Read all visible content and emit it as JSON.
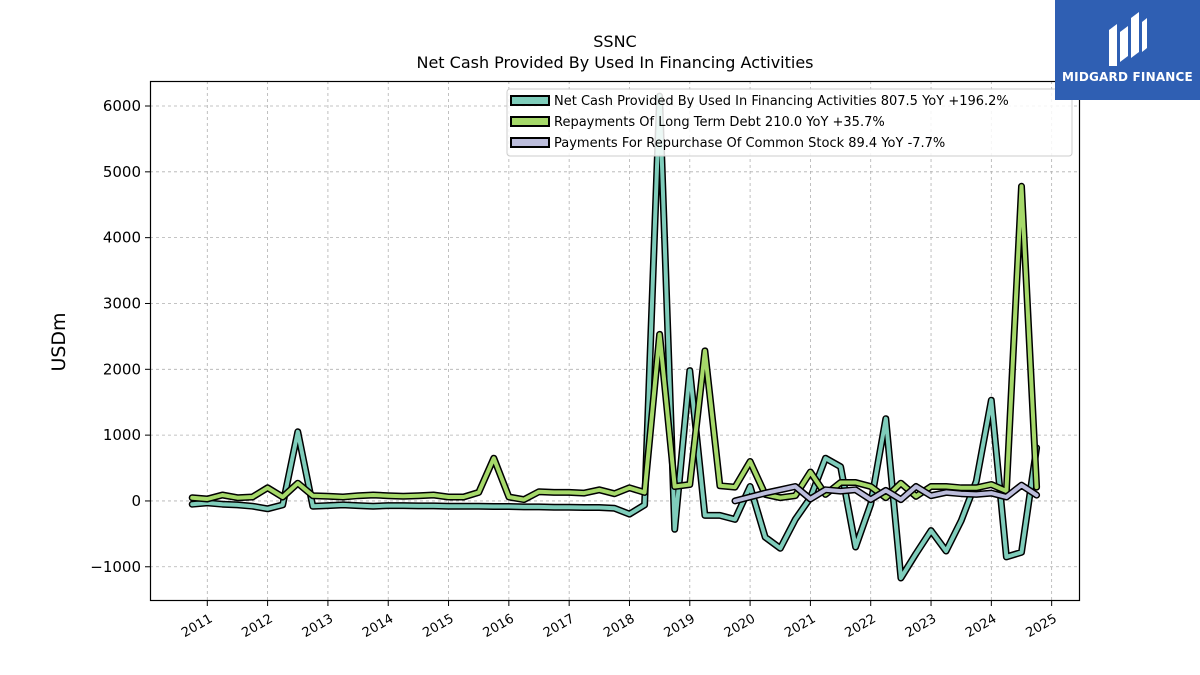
{
  "chart_data": {
    "type": "line",
    "title": "SSNC",
    "subtitle": "Net Cash Provided By Used In Financing Activities",
    "ylabel": "USDm",
    "xlabel": "",
    "xlim": [
      2010.05,
      2025.47
    ],
    "ylim": [
      -1520,
      6380
    ],
    "x_ticks": [
      "2011",
      "2012",
      "2013",
      "2014",
      "2015",
      "2016",
      "2017",
      "2018",
      "2019",
      "2020",
      "2021",
      "2022",
      "2023",
      "2024",
      "2025"
    ],
    "y_ticks": [
      -1000,
      0,
      1000,
      2000,
      3000,
      4000,
      5000,
      6000
    ],
    "y_tick_labels": [
      "−1000",
      "0",
      "1000",
      "2000",
      "3000",
      "4000",
      "5000",
      "6000"
    ],
    "grid": true,
    "legend_position": "top-right",
    "series": [
      {
        "name": "Net Cash Provided By Used In Financing Activities",
        "legend": "Net Cash Provided By Used In Financing Activities  807.5 YoY +196.2%",
        "color": "#7fcdbb",
        "x": [
          2010.75,
          2011.0,
          2011.25,
          2011.5,
          2011.75,
          2012.0,
          2012.25,
          2012.5,
          2012.75,
          2013.0,
          2013.25,
          2013.5,
          2013.75,
          2014.0,
          2014.25,
          2014.5,
          2014.75,
          2015.0,
          2015.25,
          2015.5,
          2015.75,
          2016.0,
          2016.25,
          2016.5,
          2016.75,
          2017.0,
          2017.25,
          2017.5,
          2017.75,
          2018.0,
          2018.25,
          2018.5,
          2018.75,
          2019.0,
          2019.25,
          2019.5,
          2019.75,
          2020.0,
          2020.25,
          2020.5,
          2020.75,
          2021.0,
          2021.25,
          2021.5,
          2021.75,
          2022.0,
          2022.25,
          2022.5,
          2022.75,
          2023.0,
          2023.25,
          2023.5,
          2023.75,
          2024.0,
          2024.25,
          2024.5,
          2024.75
        ],
        "values": [
          -50,
          -30,
          -50,
          -60,
          -80,
          -120,
          -60,
          1050,
          -80,
          -70,
          -60,
          -70,
          -80,
          -70,
          -70,
          -75,
          -75,
          -80,
          -80,
          -80,
          -85,
          -85,
          -90,
          -90,
          -95,
          -95,
          -100,
          -100,
          -110,
          -200,
          -60,
          6150,
          -430,
          1980,
          -220,
          -220,
          -280,
          220,
          -550,
          -720,
          -280,
          50,
          650,
          520,
          -700,
          -50,
          1250,
          -1170,
          -800,
          -450,
          -760,
          -300,
          300,
          1530,
          -850,
          -780,
          807.5
        ]
      },
      {
        "name": "Repayments Of Long Term Debt",
        "legend": "Repayments Of Long Term Debt  210.0 YoY +35.7%",
        "color": "#a6d96a",
        "x": [
          2010.75,
          2011.0,
          2011.25,
          2011.5,
          2011.75,
          2012.0,
          2012.25,
          2012.5,
          2012.75,
          2013.0,
          2013.25,
          2013.5,
          2013.75,
          2014.0,
          2014.25,
          2014.5,
          2014.75,
          2015.0,
          2015.25,
          2015.5,
          2015.75,
          2016.0,
          2016.25,
          2016.5,
          2016.75,
          2017.0,
          2017.25,
          2017.5,
          2017.75,
          2018.0,
          2018.25,
          2018.5,
          2018.75,
          2019.0,
          2019.25,
          2019.5,
          2019.75,
          2020.0,
          2020.25,
          2020.5,
          2020.75,
          2021.0,
          2021.25,
          2021.5,
          2021.75,
          2022.0,
          2022.25,
          2022.5,
          2022.75,
          2023.0,
          2023.25,
          2023.5,
          2023.75,
          2024.0,
          2024.25,
          2024.5,
          2024.75
        ],
        "values": [
          50,
          30,
          90,
          50,
          60,
          200,
          60,
          270,
          80,
          70,
          60,
          80,
          90,
          80,
          70,
          80,
          90,
          60,
          60,
          130,
          650,
          60,
          20,
          140,
          130,
          130,
          120,
          170,
          110,
          200,
          130,
          2530,
          220,
          250,
          2280,
          230,
          210,
          600,
          100,
          50,
          80,
          440,
          100,
          280,
          280,
          220,
          50,
          270,
          70,
          220,
          220,
          200,
          200,
          250,
          150,
          4780,
          210
        ]
      },
      {
        "name": "Payments For Repurchase Of Common Stock",
        "legend": "Payments For Repurchase Of Common Stock  89.4 YoY -7.7%",
        "color": "#bcbddc",
        "x": [
          2019.75,
          2020.0,
          2020.25,
          2020.5,
          2020.75,
          2021.0,
          2021.25,
          2021.5,
          2021.75,
          2022.0,
          2022.25,
          2022.5,
          2022.75,
          2023.0,
          2023.25,
          2023.5,
          2023.75,
          2024.0,
          2024.25,
          2024.5,
          2024.75
        ],
        "values": [
          0,
          60,
          120,
          170,
          220,
          30,
          170,
          150,
          170,
          20,
          160,
          20,
          220,
          80,
          130,
          110,
          100,
          120,
          60,
          240,
          89.4
        ]
      }
    ]
  },
  "logo": {
    "text": "MIDGARD FINANCE"
  }
}
